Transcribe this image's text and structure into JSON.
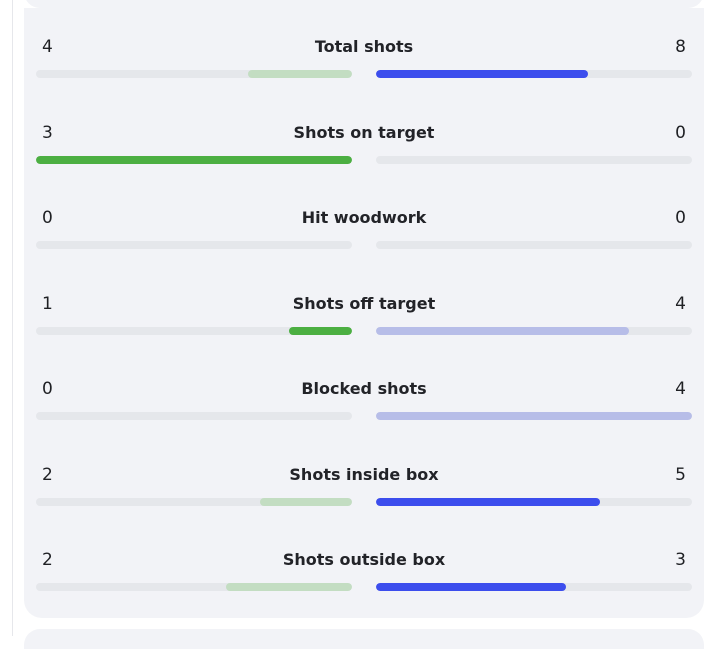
{
  "colors": {
    "home_strong": "#4caf42",
    "home_weak": "#c3ddc2",
    "away_strong": "#3c4ded",
    "away_weak": "#b7bde8",
    "track": "#e5e7eb"
  },
  "stats": [
    {
      "label": "Total shots",
      "home": "4",
      "away": "8",
      "home_fill": 0.33,
      "away_fill": 0.67,
      "home_style": "weak",
      "away_style": "strong"
    },
    {
      "label": "Shots on target",
      "home": "3",
      "away": "0",
      "home_fill": 1.0,
      "away_fill": 0.0,
      "home_style": "strong",
      "away_style": "weak"
    },
    {
      "label": "Hit woodwork",
      "home": "0",
      "away": "0",
      "home_fill": 0.0,
      "away_fill": 0.0,
      "home_style": "weak",
      "away_style": "weak"
    },
    {
      "label": "Shots off target",
      "home": "1",
      "away": "4",
      "home_fill": 0.2,
      "away_fill": 0.8,
      "home_style": "strong",
      "away_style": "weak"
    },
    {
      "label": "Blocked shots",
      "home": "0",
      "away": "4",
      "home_fill": 0.0,
      "away_fill": 1.0,
      "home_style": "weak",
      "away_style": "weak"
    },
    {
      "label": "Shots inside box",
      "home": "2",
      "away": "5",
      "home_fill": 0.29,
      "away_fill": 0.71,
      "home_style": "weak",
      "away_style": "strong"
    },
    {
      "label": "Shots outside box",
      "home": "2",
      "away": "3",
      "home_fill": 0.4,
      "away_fill": 0.6,
      "home_style": "weak",
      "away_style": "strong"
    }
  ]
}
